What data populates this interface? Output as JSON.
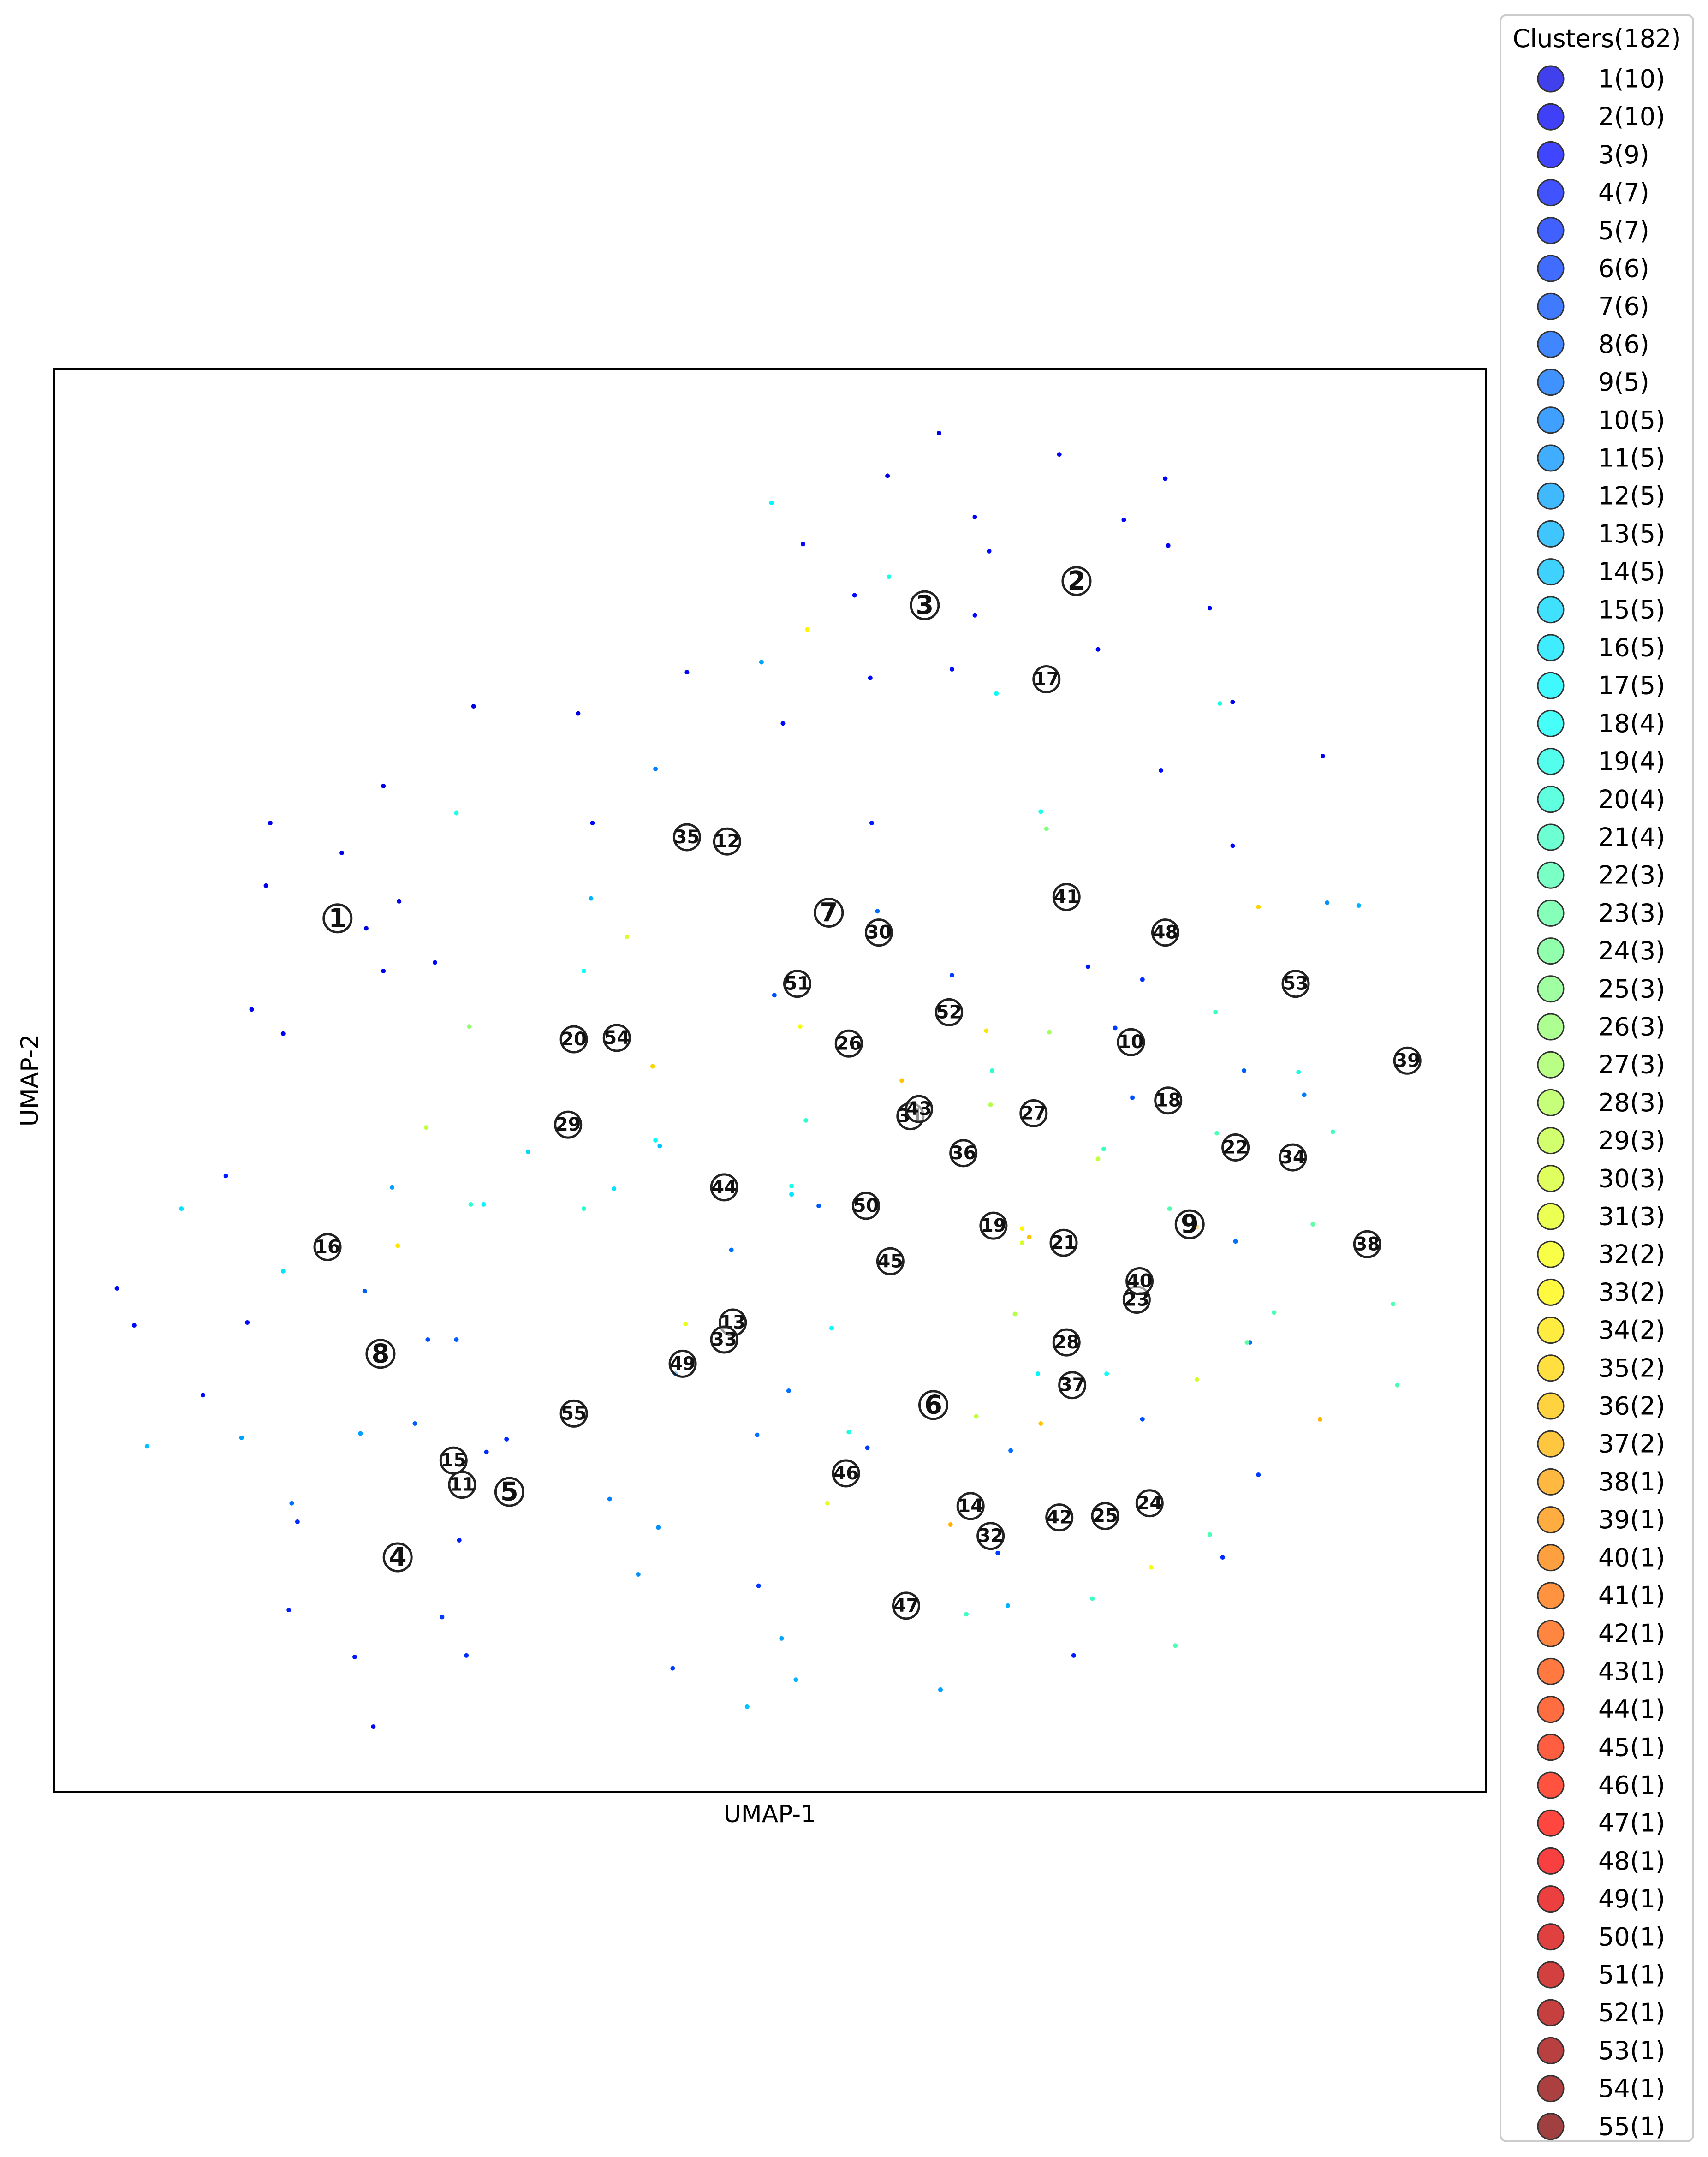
{
  "chart_data": {
    "type": "scatter",
    "xlabel": "UMAP-1",
    "ylabel": "UMAP-2",
    "xlim": [
      0,
      100
    ],
    "ylim": [
      0,
      100
    ],
    "grid": false,
    "ticks": false,
    "colormap": "jet",
    "legend": {
      "placement": "outside-right",
      "title": "Clusters(182)",
      "entries": [
        "1(10)",
        "2(10)",
        "3(9)",
        "4(7)",
        "5(7)",
        "6(6)",
        "7(6)",
        "8(6)",
        "9(5)",
        "10(5)",
        "11(5)",
        "12(5)",
        "13(5)",
        "14(5)",
        "15(5)",
        "16(5)",
        "17(5)",
        "18(4)",
        "19(4)",
        "20(4)",
        "21(4)",
        "22(3)",
        "23(3)",
        "24(3)",
        "25(3)",
        "26(3)",
        "27(3)",
        "28(3)",
        "29(3)",
        "30(3)",
        "31(3)",
        "32(2)",
        "33(2)",
        "34(2)",
        "35(2)",
        "36(2)",
        "37(2)",
        "38(1)",
        "39(1)",
        "40(1)",
        "41(1)",
        "42(1)",
        "43(1)",
        "44(1)",
        "45(1)",
        "46(1)",
        "47(1)",
        "48(1)",
        "49(1)",
        "50(1)",
        "51(1)",
        "52(1)",
        "53(1)",
        "54(1)",
        "55(1)"
      ]
    },
    "centroids": [
      {
        "label": "1",
        "x": 19.8,
        "y": 61.4
      },
      {
        "label": "2",
        "x": 71.4,
        "y": 85.1
      },
      {
        "label": "3",
        "x": 60.8,
        "y": 83.4
      },
      {
        "label": "4",
        "x": 24.0,
        "y": 16.5
      },
      {
        "label": "5",
        "x": 31.8,
        "y": 21.1
      },
      {
        "label": "6",
        "x": 61.4,
        "y": 27.2
      },
      {
        "label": "7",
        "x": 54.1,
        "y": 61.8
      },
      {
        "label": "8",
        "x": 22.8,
        "y": 30.8
      },
      {
        "label": "9",
        "x": 79.3,
        "y": 39.9
      },
      {
        "label": "10",
        "x": 75.2,
        "y": 52.7
      },
      {
        "label": "11",
        "x": 28.5,
        "y": 21.6
      },
      {
        "label": "12",
        "x": 47.0,
        "y": 66.8
      },
      {
        "label": "13",
        "x": 47.4,
        "y": 33.0
      },
      {
        "label": "14",
        "x": 64.0,
        "y": 20.1
      },
      {
        "label": "15",
        "x": 27.9,
        "y": 23.3
      },
      {
        "label": "16",
        "x": 19.1,
        "y": 38.3
      },
      {
        "label": "17",
        "x": 69.3,
        "y": 78.2
      },
      {
        "label": "18",
        "x": 77.8,
        "y": 48.6
      },
      {
        "label": "19",
        "x": 65.6,
        "y": 39.8
      },
      {
        "label": "20",
        "x": 36.3,
        "y": 52.9
      },
      {
        "label": "21",
        "x": 70.5,
        "y": 38.6
      },
      {
        "label": "22",
        "x": 82.5,
        "y": 45.3
      },
      {
        "label": "23",
        "x": 75.6,
        "y": 34.6
      },
      {
        "label": "24",
        "x": 76.5,
        "y": 20.3
      },
      {
        "label": "25",
        "x": 73.4,
        "y": 19.4
      },
      {
        "label": "26",
        "x": 55.5,
        "y": 52.6
      },
      {
        "label": "27",
        "x": 68.4,
        "y": 47.7
      },
      {
        "label": "28",
        "x": 70.7,
        "y": 31.6
      },
      {
        "label": "29",
        "x": 35.9,
        "y": 46.9
      },
      {
        "label": "30",
        "x": 57.6,
        "y": 60.4
      },
      {
        "label": "31",
        "x": 59.8,
        "y": 47.5
      },
      {
        "label": "32",
        "x": 65.4,
        "y": 18.0
      },
      {
        "label": "33",
        "x": 46.8,
        "y": 31.8
      },
      {
        "label": "34",
        "x": 86.5,
        "y": 44.6
      },
      {
        "label": "35",
        "x": 44.2,
        "y": 67.1
      },
      {
        "label": "36",
        "x": 63.5,
        "y": 44.9
      },
      {
        "label": "37",
        "x": 71.1,
        "y": 28.6
      },
      {
        "label": "38",
        "x": 91.7,
        "y": 38.5
      },
      {
        "label": "39",
        "x": 94.5,
        "y": 51.4
      },
      {
        "label": "40",
        "x": 75.8,
        "y": 35.9
      },
      {
        "label": "41",
        "x": 70.7,
        "y": 62.9
      },
      {
        "label": "42",
        "x": 70.2,
        "y": 19.3
      },
      {
        "label": "43",
        "x": 60.4,
        "y": 48.0
      },
      {
        "label": "44",
        "x": 46.8,
        "y": 42.5
      },
      {
        "label": "45",
        "x": 58.4,
        "y": 37.3
      },
      {
        "label": "46",
        "x": 55.3,
        "y": 22.4
      },
      {
        "label": "47",
        "x": 59.5,
        "y": 13.1
      },
      {
        "label": "48",
        "x": 77.6,
        "y": 60.4
      },
      {
        "label": "49",
        "x": 43.9,
        "y": 30.1
      },
      {
        "label": "50",
        "x": 56.7,
        "y": 41.2
      },
      {
        "label": "51",
        "x": 51.9,
        "y": 56.8
      },
      {
        "label": "52",
        "x": 62.5,
        "y": 54.8
      },
      {
        "label": "53",
        "x": 86.7,
        "y": 56.8
      },
      {
        "label": "54",
        "x": 39.3,
        "y": 53.0
      },
      {
        "label": "55",
        "x": 36.3,
        "y": 26.6
      }
    ],
    "points": [
      {
        "x": 61.8,
        "y": 95.5,
        "cluster": 1
      },
      {
        "x": 58.2,
        "y": 92.5,
        "cluster": 1
      },
      {
        "x": 70.2,
        "y": 94.0,
        "cluster": 2
      },
      {
        "x": 77.6,
        "y": 92.3,
        "cluster": 2
      },
      {
        "x": 64.3,
        "y": 89.6,
        "cluster": 2
      },
      {
        "x": 74.7,
        "y": 89.4,
        "cluster": 2
      },
      {
        "x": 52.3,
        "y": 87.7,
        "cluster": 3
      },
      {
        "x": 65.3,
        "y": 87.2,
        "cluster": 3
      },
      {
        "x": 77.8,
        "y": 87.6,
        "cluster": 2
      },
      {
        "x": 55.9,
        "y": 84.1,
        "cluster": 3
      },
      {
        "x": 64.3,
        "y": 82.7,
        "cluster": 3
      },
      {
        "x": 80.7,
        "y": 83.2,
        "cluster": 2
      },
      {
        "x": 72.9,
        "y": 80.3,
        "cluster": 2
      },
      {
        "x": 44.2,
        "y": 78.7,
        "cluster": 3
      },
      {
        "x": 62.7,
        "y": 78.9,
        "cluster": 3
      },
      {
        "x": 57.0,
        "y": 78.3,
        "cluster": 3
      },
      {
        "x": 49.4,
        "y": 79.4,
        "cluster": 12
      },
      {
        "x": 82.3,
        "y": 76.6,
        "cluster": 2
      },
      {
        "x": 29.3,
        "y": 76.3,
        "cluster": 1
      },
      {
        "x": 36.6,
        "y": 75.8,
        "cluster": 1
      },
      {
        "x": 50.9,
        "y": 75.1,
        "cluster": 3
      },
      {
        "x": 42.0,
        "y": 71.9,
        "cluster": 10
      },
      {
        "x": 88.6,
        "y": 72.8,
        "cluster": 2
      },
      {
        "x": 77.3,
        "y": 71.8,
        "cluster": 3
      },
      {
        "x": 23.0,
        "y": 70.7,
        "cluster": 1
      },
      {
        "x": 15.1,
        "y": 68.1,
        "cluster": 1
      },
      {
        "x": 37.6,
        "y": 68.1,
        "cluster": 3
      },
      {
        "x": 57.1,
        "y": 68.1,
        "cluster": 4
      },
      {
        "x": 82.3,
        "y": 66.5,
        "cluster": 3
      },
      {
        "x": 20.1,
        "y": 66.0,
        "cluster": 1
      },
      {
        "x": 14.8,
        "y": 63.7,
        "cluster": 1
      },
      {
        "x": 24.1,
        "y": 62.6,
        "cluster": 1
      },
      {
        "x": 21.8,
        "y": 60.7,
        "cluster": 1
      },
      {
        "x": 57.5,
        "y": 61.9,
        "cluster": 9
      },
      {
        "x": 37.5,
        "y": 62.8,
        "cluster": 13
      },
      {
        "x": 88.9,
        "y": 62.5,
        "cluster": 11
      },
      {
        "x": 91.1,
        "y": 62.3,
        "cluster": 13
      },
      {
        "x": 23.0,
        "y": 57.7,
        "cluster": 1
      },
      {
        "x": 26.6,
        "y": 58.3,
        "cluster": 3
      },
      {
        "x": 62.7,
        "y": 57.4,
        "cluster": 6
      },
      {
        "x": 72.2,
        "y": 58.0,
        "cluster": 4
      },
      {
        "x": 76.0,
        "y": 57.1,
        "cluster": 5
      },
      {
        "x": 50.3,
        "y": 56.0,
        "cluster": 7
      },
      {
        "x": 13.8,
        "y": 55.0,
        "cluster": 2
      },
      {
        "x": 16.0,
        "y": 53.3,
        "cluster": 2
      },
      {
        "x": 74.1,
        "y": 53.7,
        "cluster": 6
      },
      {
        "x": 83.1,
        "y": 50.7,
        "cluster": 8
      },
      {
        "x": 75.3,
        "y": 48.8,
        "cluster": 7
      },
      {
        "x": 87.3,
        "y": 49.0,
        "cluster": 10
      },
      {
        "x": 12.0,
        "y": 43.3,
        "cluster": 4
      },
      {
        "x": 23.6,
        "y": 42.5,
        "cluster": 12
      },
      {
        "x": 42.3,
        "y": 45.4,
        "cluster": 14
      },
      {
        "x": 33.1,
        "y": 45.0,
        "cluster": 15
      },
      {
        "x": 39.1,
        "y": 42.4,
        "cluster": 16
      },
      {
        "x": 53.4,
        "y": 41.2,
        "cluster": 8
      },
      {
        "x": 30.0,
        "y": 41.3,
        "cluster": 17
      },
      {
        "x": 8.9,
        "y": 41.0,
        "cluster": 16
      },
      {
        "x": 47.3,
        "y": 38.1,
        "cluster": 9
      },
      {
        "x": 82.5,
        "y": 38.7,
        "cluster": 9
      },
      {
        "x": 16.0,
        "y": 36.6,
        "cluster": 16
      },
      {
        "x": 21.7,
        "y": 35.2,
        "cluster": 8
      },
      {
        "x": 4.4,
        "y": 35.4,
        "cluster": 3
      },
      {
        "x": 5.6,
        "y": 32.8,
        "cluster": 3
      },
      {
        "x": 13.5,
        "y": 33.0,
        "cluster": 3
      },
      {
        "x": 26.1,
        "y": 31.8,
        "cluster": 7
      },
      {
        "x": 28.1,
        "y": 31.8,
        "cluster": 8
      },
      {
        "x": 43.4,
        "y": 29.4,
        "cluster": 10
      },
      {
        "x": 51.3,
        "y": 28.2,
        "cluster": 9
      },
      {
        "x": 83.5,
        "y": 31.6,
        "cluster": 9
      },
      {
        "x": 10.4,
        "y": 27.9,
        "cluster": 3
      },
      {
        "x": 25.2,
        "y": 25.9,
        "cluster": 8
      },
      {
        "x": 49.1,
        "y": 25.1,
        "cluster": 9
      },
      {
        "x": 30.2,
        "y": 23.9,
        "cluster": 5
      },
      {
        "x": 31.6,
        "y": 24.8,
        "cluster": 5
      },
      {
        "x": 66.8,
        "y": 24.0,
        "cluster": 9
      },
      {
        "x": 76.0,
        "y": 26.2,
        "cluster": 7
      },
      {
        "x": 84.1,
        "y": 22.3,
        "cluster": 6
      },
      {
        "x": 56.8,
        "y": 24.2,
        "cluster": 6
      },
      {
        "x": 6.5,
        "y": 24.3,
        "cluster": 14
      },
      {
        "x": 13.1,
        "y": 24.9,
        "cluster": 12
      },
      {
        "x": 21.4,
        "y": 25.2,
        "cluster": 12
      },
      {
        "x": 16.6,
        "y": 20.3,
        "cluster": 9
      },
      {
        "x": 38.8,
        "y": 20.6,
        "cluster": 10
      },
      {
        "x": 17.0,
        "y": 19.0,
        "cluster": 5
      },
      {
        "x": 42.2,
        "y": 18.6,
        "cluster": 11
      },
      {
        "x": 28.3,
        "y": 17.7,
        "cluster": 4
      },
      {
        "x": 65.9,
        "y": 16.8,
        "cluster": 6
      },
      {
        "x": 40.8,
        "y": 15.3,
        "cluster": 11
      },
      {
        "x": 49.2,
        "y": 14.5,
        "cluster": 6
      },
      {
        "x": 81.6,
        "y": 16.5,
        "cluster": 5
      },
      {
        "x": 16.4,
        "y": 12.8,
        "cluster": 4
      },
      {
        "x": 27.1,
        "y": 12.3,
        "cluster": 6
      },
      {
        "x": 66.6,
        "y": 13.1,
        "cluster": 13
      },
      {
        "x": 50.8,
        "y": 10.8,
        "cluster": 12
      },
      {
        "x": 21.0,
        "y": 9.5,
        "cluster": 4
      },
      {
        "x": 28.8,
        "y": 9.6,
        "cluster": 5
      },
      {
        "x": 43.2,
        "y": 8.7,
        "cluster": 6
      },
      {
        "x": 71.2,
        "y": 9.6,
        "cluster": 4
      },
      {
        "x": 51.8,
        "y": 7.9,
        "cluster": 13
      },
      {
        "x": 61.9,
        "y": 7.2,
        "cluster": 12
      },
      {
        "x": 48.4,
        "y": 6.0,
        "cluster": 14
      },
      {
        "x": 22.3,
        "y": 4.6,
        "cluster": 3
      },
      {
        "x": 50.1,
        "y": 90.6,
        "cluster": 17
      },
      {
        "x": 58.3,
        "y": 85.4,
        "cluster": 19
      },
      {
        "x": 65.8,
        "y": 77.2,
        "cluster": 18
      },
      {
        "x": 81.4,
        "y": 76.5,
        "cluster": 19
      },
      {
        "x": 28.1,
        "y": 68.8,
        "cluster": 19
      },
      {
        "x": 68.9,
        "y": 68.9,
        "cluster": 19
      },
      {
        "x": 37.0,
        "y": 57.7,
        "cluster": 18
      },
      {
        "x": 65.5,
        "y": 50.7,
        "cluster": 20
      },
      {
        "x": 81.1,
        "y": 54.8,
        "cluster": 21
      },
      {
        "x": 86.9,
        "y": 50.6,
        "cluster": 19
      },
      {
        "x": 89.3,
        "y": 46.4,
        "cluster": 21
      },
      {
        "x": 81.2,
        "y": 46.3,
        "cluster": 22
      },
      {
        "x": 52.5,
        "y": 47.2,
        "cluster": 20
      },
      {
        "x": 42.0,
        "y": 45.8,
        "cluster": 18
      },
      {
        "x": 73.3,
        "y": 45.2,
        "cluster": 21
      },
      {
        "x": 51.5,
        "y": 42.6,
        "cluster": 19
      },
      {
        "x": 29.1,
        "y": 41.3,
        "cluster": 20
      },
      {
        "x": 37.0,
        "y": 41.0,
        "cluster": 20
      },
      {
        "x": 77.9,
        "y": 41.0,
        "cluster": 22
      },
      {
        "x": 87.9,
        "y": 39.9,
        "cluster": 23
      },
      {
        "x": 93.5,
        "y": 34.3,
        "cluster": 22
      },
      {
        "x": 85.2,
        "y": 33.7,
        "cluster": 22
      },
      {
        "x": 83.3,
        "y": 31.6,
        "cluster": 23
      },
      {
        "x": 54.3,
        "y": 32.6,
        "cluster": 18
      },
      {
        "x": 93.8,
        "y": 28.6,
        "cluster": 22
      },
      {
        "x": 68.7,
        "y": 29.4,
        "cluster": 17
      },
      {
        "x": 73.5,
        "y": 29.4,
        "cluster": 18
      },
      {
        "x": 55.5,
        "y": 25.3,
        "cluster": 19
      },
      {
        "x": 80.7,
        "y": 18.1,
        "cluster": 22
      },
      {
        "x": 72.5,
        "y": 13.6,
        "cluster": 21
      },
      {
        "x": 63.7,
        "y": 12.5,
        "cluster": 21
      },
      {
        "x": 78.3,
        "y": 10.3,
        "cluster": 22
      },
      {
        "x": 69.3,
        "y": 67.7,
        "cluster": 25
      },
      {
        "x": 29.0,
        "y": 53.8,
        "cluster": 26
      },
      {
        "x": 40.0,
        "y": 60.1,
        "cluster": 30
      },
      {
        "x": 69.5,
        "y": 53.4,
        "cluster": 27
      },
      {
        "x": 52.1,
        "y": 53.8,
        "cluster": 32
      },
      {
        "x": 65.4,
        "y": 48.3,
        "cluster": 28
      },
      {
        "x": 26.0,
        "y": 46.7,
        "cluster": 29
      },
      {
        "x": 72.9,
        "y": 44.5,
        "cluster": 29
      },
      {
        "x": 67.6,
        "y": 39.6,
        "cluster": 33
      },
      {
        "x": 67.6,
        "y": 38.6,
        "cluster": 30
      },
      {
        "x": 44.1,
        "y": 32.9,
        "cluster": 31
      },
      {
        "x": 67.1,
        "y": 33.6,
        "cluster": 28
      },
      {
        "x": 64.4,
        "y": 26.4,
        "cluster": 29
      },
      {
        "x": 79.8,
        "y": 29.0,
        "cluster": 30
      },
      {
        "x": 76.6,
        "y": 15.8,
        "cluster": 32
      },
      {
        "x": 54.0,
        "y": 20.3,
        "cluster": 31
      },
      {
        "x": 52.6,
        "y": 81.7,
        "cluster": 33
      },
      {
        "x": 84.1,
        "y": 62.2,
        "cluster": 35
      },
      {
        "x": 65.1,
        "y": 53.5,
        "cluster": 34
      },
      {
        "x": 41.8,
        "y": 51.0,
        "cluster": 35
      },
      {
        "x": 59.2,
        "y": 50.0,
        "cluster": 36
      },
      {
        "x": 24.0,
        "y": 38.4,
        "cluster": 34
      },
      {
        "x": 79.8,
        "y": 39.7,
        "cluster": 37
      },
      {
        "x": 68.9,
        "y": 25.9,
        "cluster": 36
      },
      {
        "x": 88.4,
        "y": 26.2,
        "cluster": 37
      },
      {
        "x": 62.6,
        "y": 18.8,
        "cluster": 37
      },
      {
        "x": 68.1,
        "y": 39.0,
        "cluster": 36
      },
      {
        "x": 51.5,
        "y": 42.0,
        "cluster": 16
      }
    ]
  }
}
